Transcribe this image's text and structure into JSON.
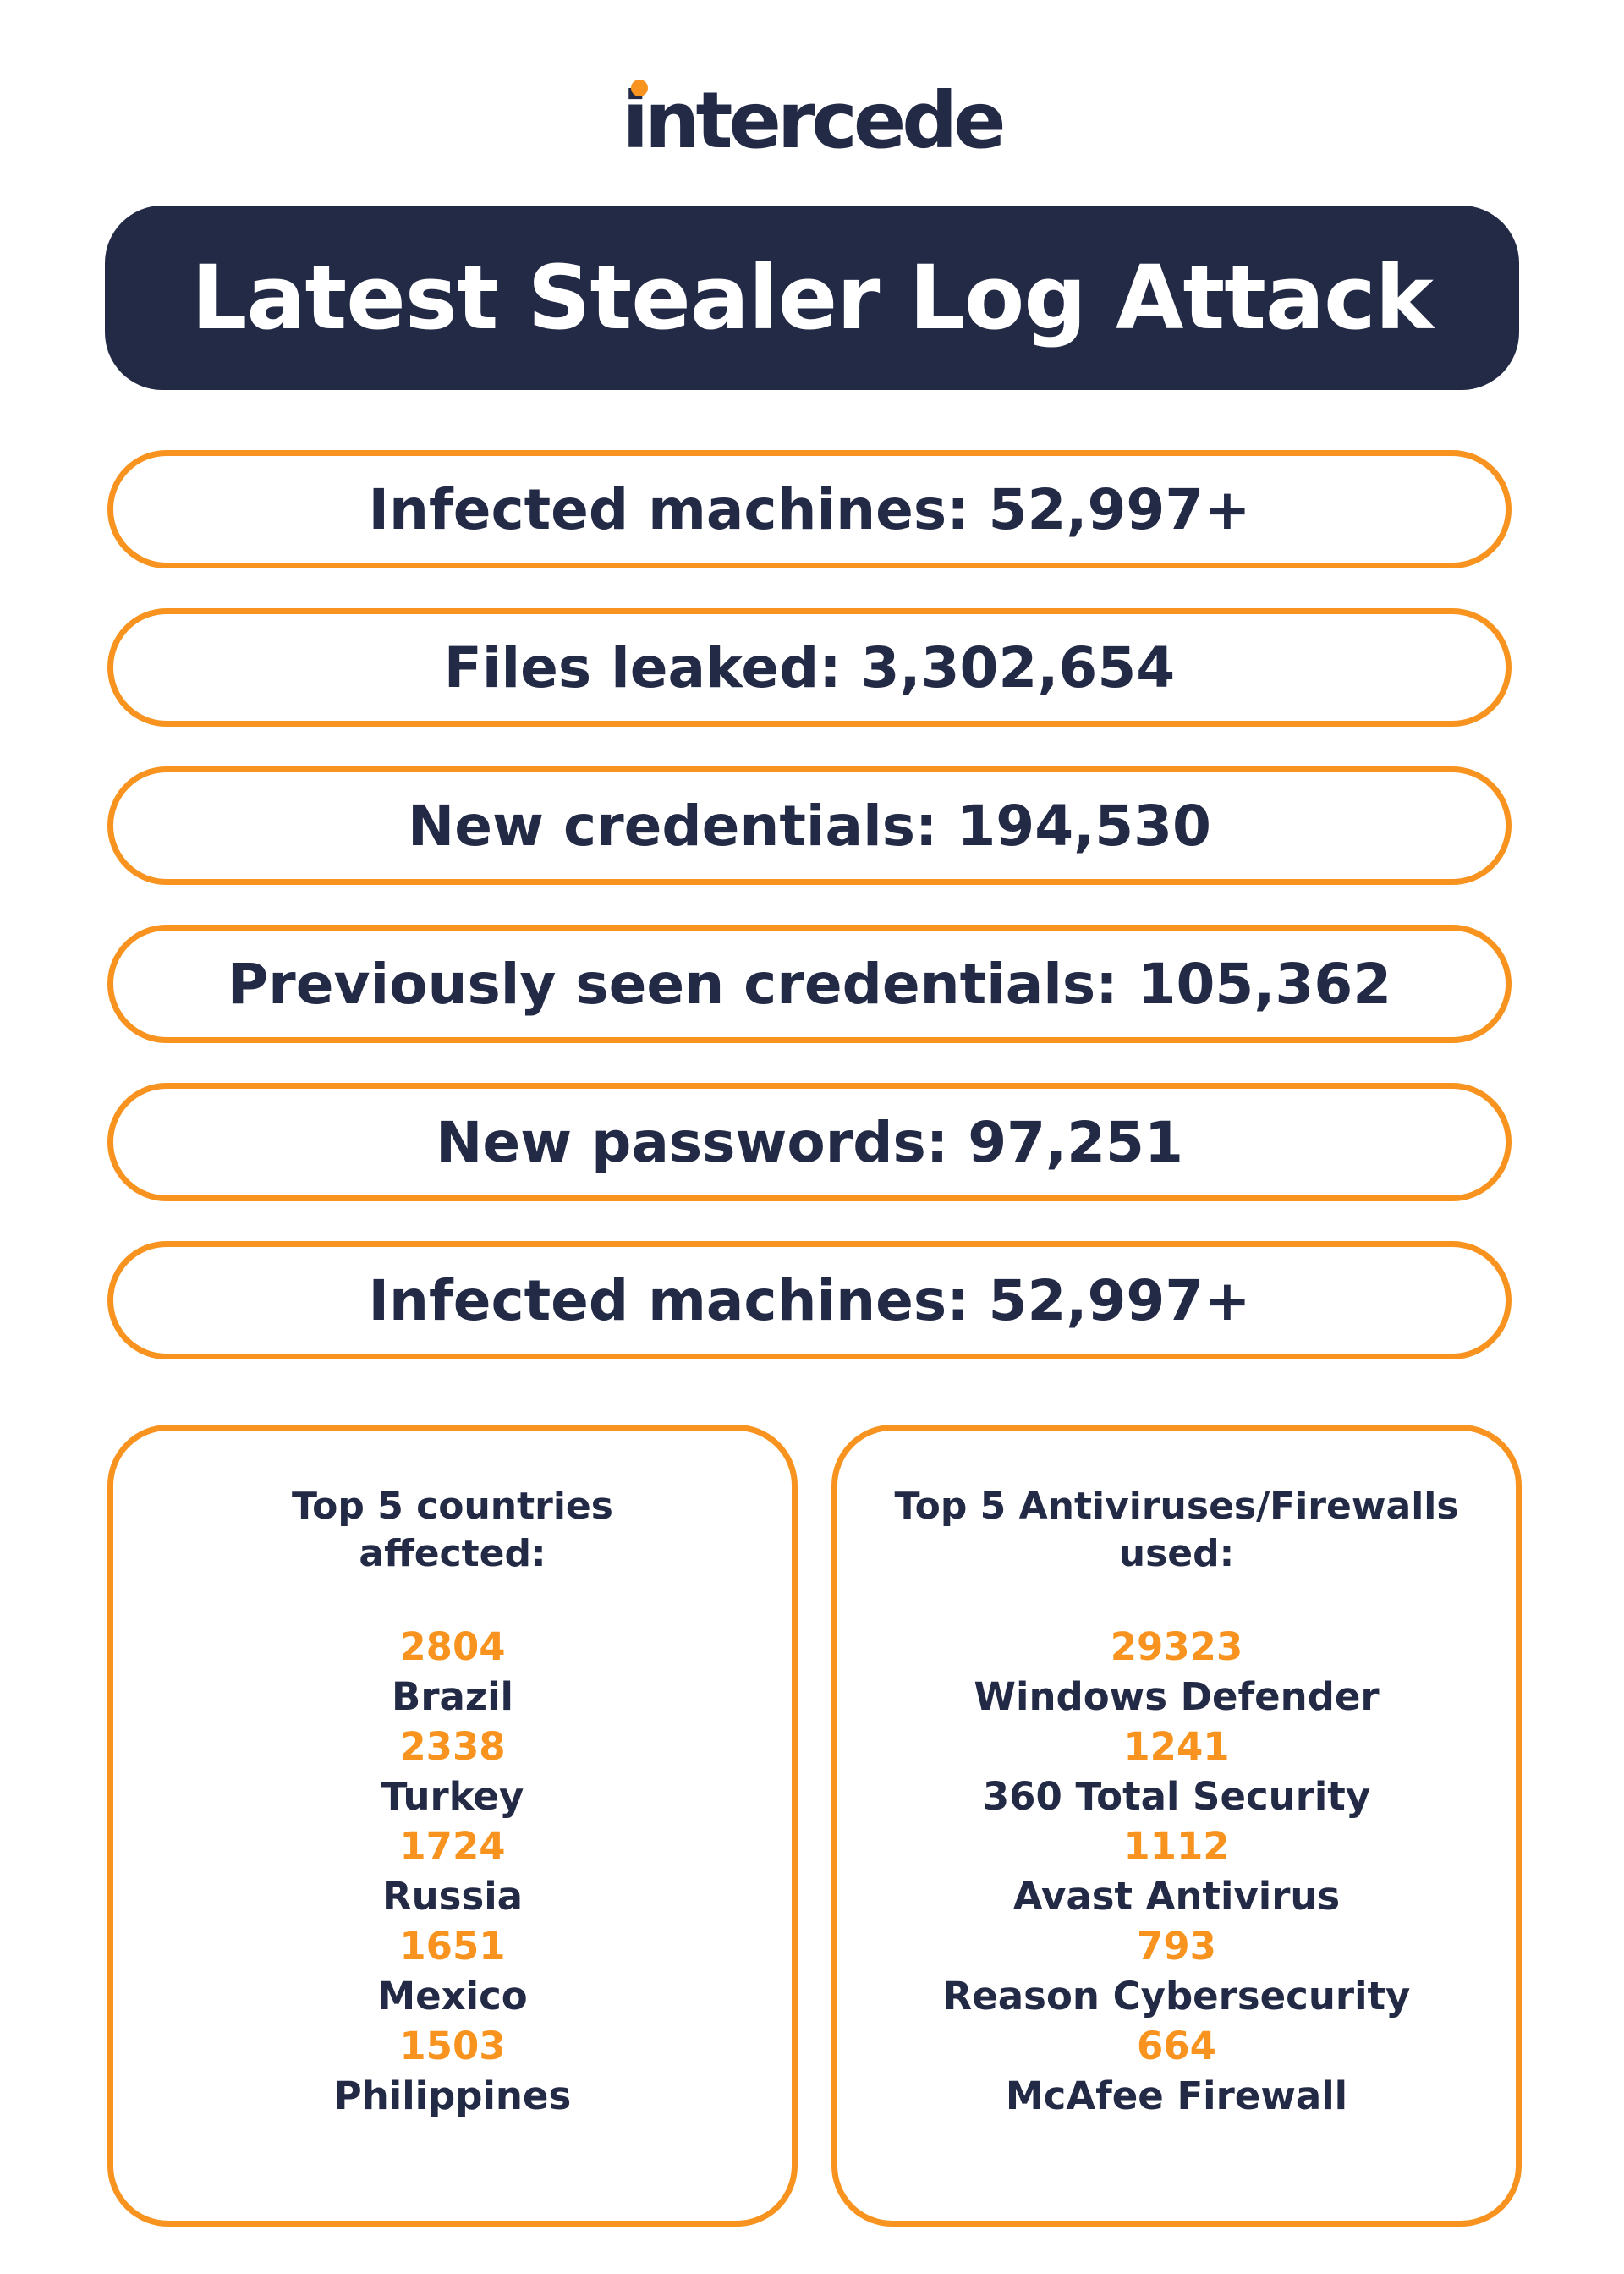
{
  "brand": {
    "logo_text": "intercede",
    "accent_color": "#f7931e",
    "navy_color": "#232a45"
  },
  "title": "Latest Stealer Log Attack",
  "stats": [
    "Infected machines: 52,997+",
    "Files leaked: 3,302,654",
    "New credentials: 194,530",
    "Previously seen credentials: 105,362",
    "New passwords: 97,251",
    "Infected machines: 52,997+"
  ],
  "countries": {
    "heading_line1": "Top 5 countries",
    "heading_line2": "affected:",
    "items": [
      {
        "value": "2804",
        "label": "Brazil"
      },
      {
        "value": "2338",
        "label": "Turkey"
      },
      {
        "value": "1724",
        "label": "Russia"
      },
      {
        "value": "1651",
        "label": "Mexico"
      },
      {
        "value": "1503",
        "label": "Philippines"
      }
    ]
  },
  "antiviruses": {
    "heading_line1": "Top 5 Antiviruses/Firewalls",
    "heading_line2": "used:",
    "items": [
      {
        "value": "29323",
        "label": "Windows Defender"
      },
      {
        "value": "1241",
        "label": "360 Total Security"
      },
      {
        "value": "1112",
        "label": "Avast Antivirus"
      },
      {
        "value": "793",
        "label": "Reason Cybersecurity"
      },
      {
        "value": "664",
        "label": "McAfee Firewall"
      }
    ]
  }
}
